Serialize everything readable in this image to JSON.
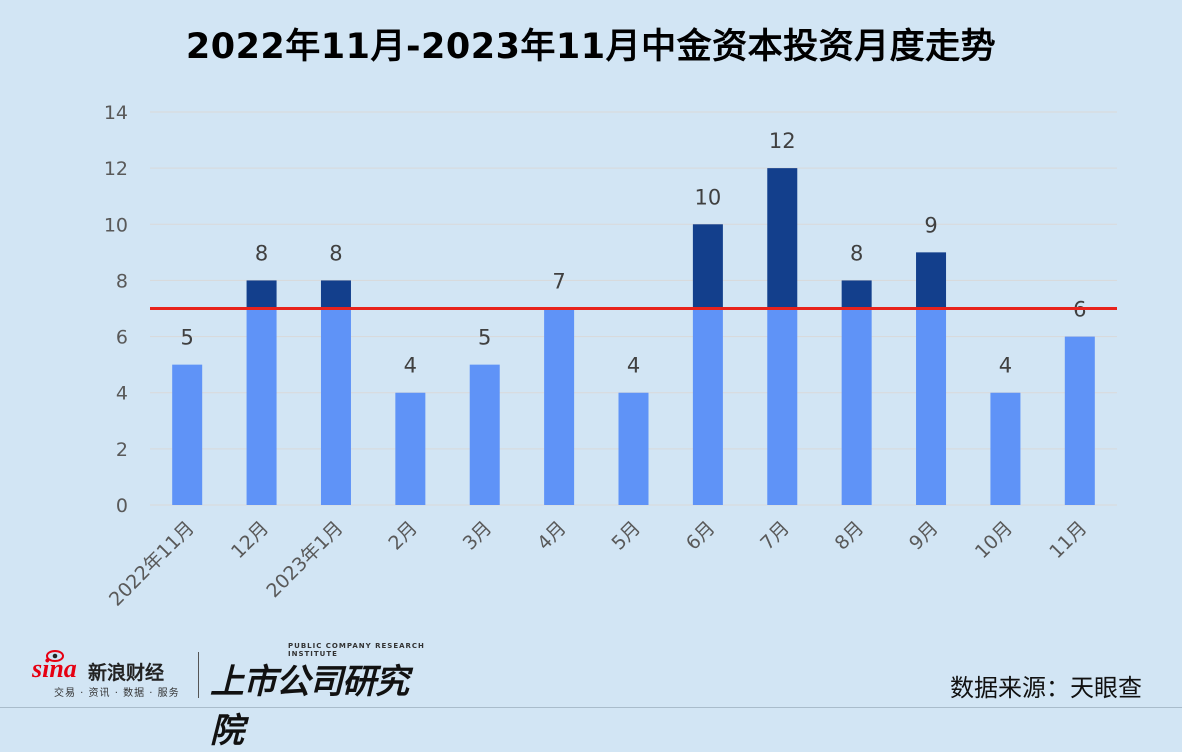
{
  "chart_data": {
    "type": "bar",
    "title": "2022年11月-2023年11月中金资本投资月度走势",
    "categories": [
      "2022年11月",
      "12月",
      "2023年1月",
      "2月",
      "3月",
      "4月",
      "5月",
      "6月",
      "7月",
      "8月",
      "9月",
      "10月",
      "11月"
    ],
    "values": [
      5,
      8,
      8,
      4,
      5,
      7,
      4,
      10,
      12,
      8,
      9,
      4,
      6
    ],
    "data_labels": [
      "5",
      "8",
      "8",
      "4",
      "5",
      "7",
      "4",
      "10",
      "12",
      "8",
      "9",
      "4",
      "6"
    ],
    "ylim": [
      0,
      14
    ],
    "yticks": [
      0,
      2,
      4,
      6,
      8,
      10,
      12,
      14
    ],
    "ytick_labels": [
      "0",
      "2",
      "4",
      "6",
      "8",
      "10",
      "12",
      "14"
    ],
    "reference_line": 7,
    "grid": true,
    "legend": "none",
    "colors": {
      "bar_below": "#5f93f7",
      "bar_above": "#133f8c",
      "reference_line": "#e8231c",
      "background": "#d2e5f4"
    }
  },
  "footer": {
    "sina_word": "sina",
    "sina_cn": "新浪财经",
    "sina_sub": "交易 · 资讯 · 数据 · 服务",
    "institute_en": "PUBLIC COMPANY RESEARCH INSTITUTE",
    "institute_cn": "上市公司研究院",
    "source": "数据来源：天眼查"
  }
}
